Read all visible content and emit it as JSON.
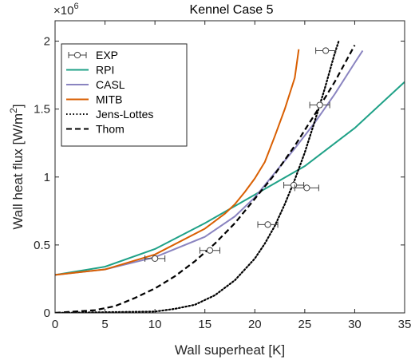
{
  "chart_data": {
    "type": "line",
    "title": "Kennel Case 5",
    "xlabel": "Wall superheat [K]",
    "ylabel": "Wall heat flux [W/m",
    "ylabel_sup": "2",
    "ylabel_end": "]",
    "y_multiplier": "×10",
    "y_multiplier_exp": "6",
    "xlim": [
      0,
      35
    ],
    "ylim": [
      0,
      2.15
    ],
    "x_ticks": [
      0,
      5,
      10,
      15,
      20,
      25,
      30,
      35
    ],
    "x_tick_labels": [
      "0",
      "5",
      "10",
      "15",
      "20",
      "25",
      "30",
      "35"
    ],
    "y_ticks": [
      0,
      0.5,
      1,
      1.5,
      2
    ],
    "y_tick_labels": [
      "0",
      "0.5",
      "1",
      "1.5",
      "2"
    ],
    "grid": false,
    "legend_position": "top-left",
    "experimental": {
      "name": "EXP",
      "points": [
        {
          "x": 10.0,
          "y": 0.4,
          "xerr": 1.0
        },
        {
          "x": 15.5,
          "y": 0.46,
          "xerr": 1.0
        },
        {
          "x": 21.3,
          "y": 0.65,
          "xerr": 1.0
        },
        {
          "x": 23.9,
          "y": 0.94,
          "xerr": 1.0
        },
        {
          "x": 25.2,
          "y": 0.92,
          "xerr": 1.2
        },
        {
          "x": 26.5,
          "y": 1.53,
          "xerr": 1.0
        },
        {
          "x": 27.1,
          "y": 1.93,
          "xerr": 1.0
        }
      ],
      "color": "#404040"
    },
    "series": [
      {
        "name": "RPI",
        "color": "#1fa187",
        "dash": "solid",
        "x": [
          0,
          5,
          10,
          15,
          20,
          25,
          30,
          35
        ],
        "y": [
          0.28,
          0.34,
          0.47,
          0.66,
          0.87,
          1.08,
          1.36,
          1.7
        ]
      },
      {
        "name": "CASL",
        "color": "#8a84c0",
        "dash": "solid",
        "x": [
          0,
          5,
          10,
          15,
          18,
          20,
          22,
          24,
          26,
          28,
          30,
          30.8
        ],
        "y": [
          0.28,
          0.32,
          0.41,
          0.56,
          0.71,
          0.85,
          1.03,
          1.21,
          1.4,
          1.61,
          1.84,
          1.93
        ]
      },
      {
        "name": "MITB",
        "color": "#d95f02",
        "dash": "solid",
        "x": [
          0,
          5,
          10,
          15,
          17,
          18,
          19,
          20,
          21,
          22,
          23,
          24,
          24.4
        ],
        "y": [
          0.28,
          0.32,
          0.43,
          0.62,
          0.73,
          0.8,
          0.89,
          0.99,
          1.11,
          1.3,
          1.5,
          1.73,
          1.94
        ]
      },
      {
        "name": "Jens-Lottes",
        "color": "#000000",
        "dash": "dot",
        "x": [
          0,
          10,
          12,
          14,
          16,
          18,
          20,
          21,
          22,
          23,
          24,
          25,
          26,
          27,
          27.5,
          28,
          28.4
        ],
        "y": [
          0,
          0.01,
          0.03,
          0.06,
          0.13,
          0.24,
          0.4,
          0.51,
          0.64,
          0.8,
          0.98,
          1.18,
          1.41,
          1.65,
          1.78,
          1.91,
          2.0
        ]
      },
      {
        "name": "Thom",
        "color": "#000000",
        "dash": "dash",
        "x": [
          0,
          4,
          6,
          8,
          10,
          12,
          14,
          16,
          18,
          20,
          22,
          24,
          26,
          28,
          30
        ],
        "y": [
          0,
          0.02,
          0.05,
          0.11,
          0.18,
          0.27,
          0.38,
          0.51,
          0.66,
          0.84,
          1.02,
          1.23,
          1.46,
          1.7,
          1.97
        ]
      }
    ]
  }
}
